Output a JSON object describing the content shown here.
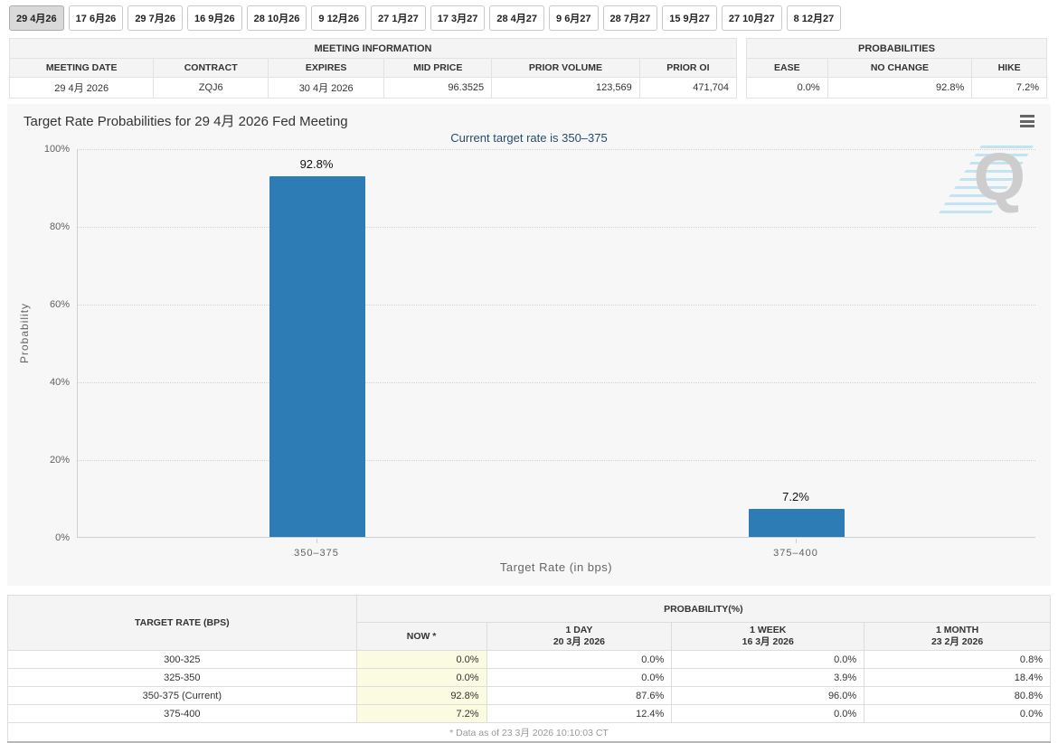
{
  "colors": {
    "bar_blue": "#2d7cb5",
    "subtitle_navy": "#274b6d",
    "now_column_bg": "#fbfbe1",
    "panel_bg": "#f7f7f7",
    "header_bg": "#f4f4f4"
  },
  "tab_bar": {
    "tabs": [
      {
        "label": "29 4月26",
        "selected": true
      },
      {
        "label": "17 6月26",
        "selected": false
      },
      {
        "label": "29 7月26",
        "selected": false
      },
      {
        "label": "16 9月26",
        "selected": false
      },
      {
        "label": "28 10月26",
        "selected": false
      },
      {
        "label": "9 12月26",
        "selected": false
      },
      {
        "label": "27 1月27",
        "selected": false
      },
      {
        "label": "17 3月27",
        "selected": false
      },
      {
        "label": "28 4月27",
        "selected": false
      },
      {
        "label": "9 6月27",
        "selected": false
      },
      {
        "label": "28 7月27",
        "selected": false
      },
      {
        "label": "15 9月27",
        "selected": false
      },
      {
        "label": "27 10月27",
        "selected": false
      },
      {
        "label": "8 12月27",
        "selected": false
      }
    ]
  },
  "meeting_information": {
    "title": "MEETING INFORMATION",
    "columns": [
      "MEETING DATE",
      "CONTRACT",
      "EXPIRES",
      "MID PRICE",
      "PRIOR VOLUME",
      "PRIOR OI"
    ],
    "values": [
      "29 4月 2026",
      "ZQJ6",
      "30 4月 2026",
      "96.3525",
      "123,569",
      "471,704"
    ],
    "numeric_from_index": 3
  },
  "probabilities_summary": {
    "title": "PROBABILITIES",
    "columns": [
      "EASE",
      "NO CHANGE",
      "HIKE"
    ],
    "values": [
      "0.0%",
      "92.8%",
      "7.2%"
    ]
  },
  "chart": {
    "title": "Target Rate Probabilities for 29 4月 2026 Fed Meeting",
    "subtitle": "Current target rate is 350–375",
    "menu_icon": "hamburger-icon",
    "watermark_letter": "Q"
  },
  "chart_data": {
    "type": "bar",
    "title": "Target Rate Probabilities for 29 4月 2026 Fed Meeting",
    "subtitle": "Current target rate is 350–375",
    "categories": [
      "350–375",
      "375–400"
    ],
    "values": [
      92.8,
      7.2
    ],
    "value_labels": [
      "92.8%",
      "7.2%"
    ],
    "xlabel": "Target Rate (in bps)",
    "ylabel": "Probability",
    "ylim": [
      0,
      100
    ],
    "yticks": [
      0,
      20,
      40,
      60,
      80,
      100
    ],
    "ytick_labels": [
      "0%",
      "20%",
      "40%",
      "60%",
      "80%",
      "100%"
    ],
    "grid": "dotted-horizontal",
    "legend": "none",
    "bar_color": "#2d7cb5"
  },
  "probability_table": {
    "col_header": "TARGET RATE (BPS)",
    "group_header": "PROBABILITY(%)",
    "sub_headers": [
      {
        "lines": [
          "NOW *"
        ]
      },
      {
        "lines": [
          "1 DAY",
          "20 3月 2026"
        ]
      },
      {
        "lines": [
          "1 WEEK",
          "16 3月 2026"
        ]
      },
      {
        "lines": [
          "1 MONTH",
          "23 2月 2026"
        ]
      }
    ],
    "rows": [
      {
        "label": "300-325",
        "values": [
          "0.0%",
          "0.0%",
          "0.0%",
          "0.8%"
        ]
      },
      {
        "label": "325-350",
        "values": [
          "0.0%",
          "0.0%",
          "3.9%",
          "18.4%"
        ]
      },
      {
        "label": "350-375 (Current)",
        "values": [
          "92.8%",
          "87.6%",
          "96.0%",
          "80.8%"
        ]
      },
      {
        "label": "375-400",
        "values": [
          "7.2%",
          "12.4%",
          "0.0%",
          "0.0%"
        ]
      }
    ],
    "footnote": "* Data as of 23 3月 2026 10:10:03 CT"
  }
}
